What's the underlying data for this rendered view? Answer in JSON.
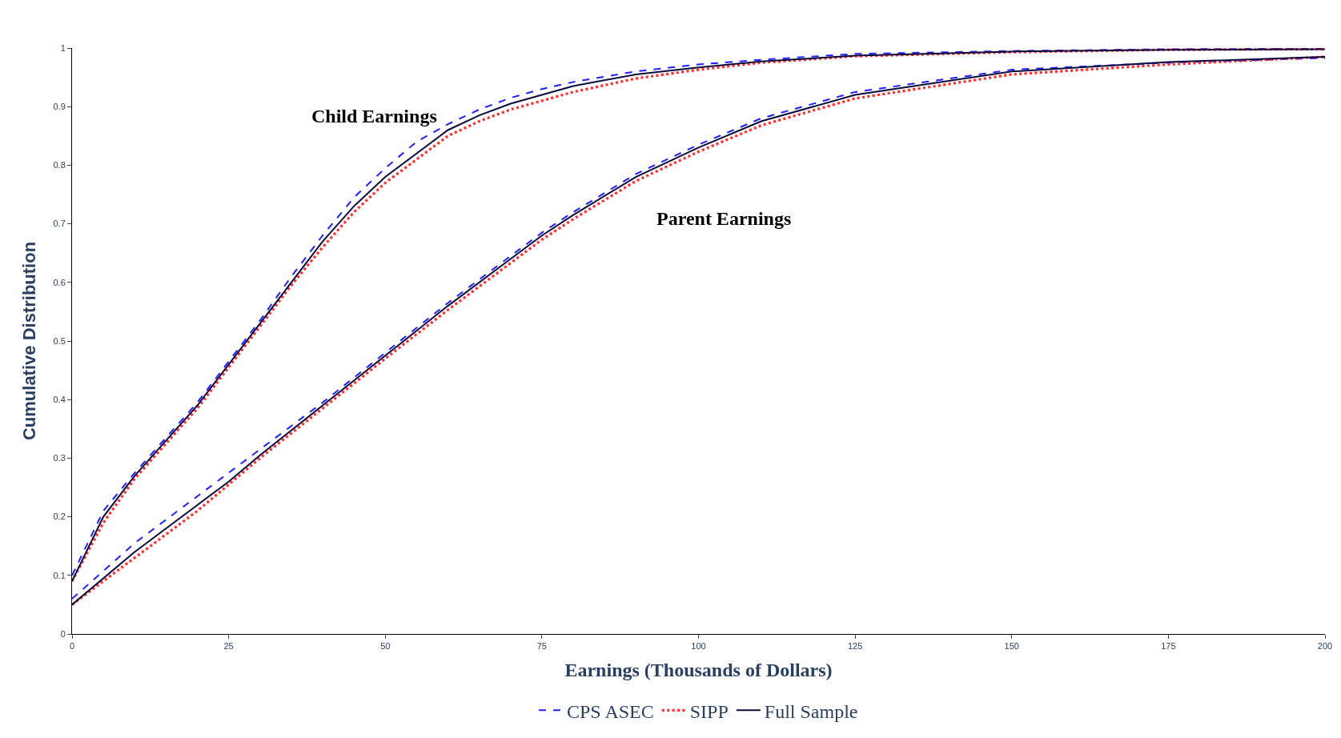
{
  "chart_data": {
    "type": "line",
    "xlabel": "Earnings (Thousands of Dollars)",
    "ylabel": "Cumulative Distribution",
    "xlim": [
      0,
      200
    ],
    "xticks": [
      0,
      25,
      50,
      75,
      100,
      125,
      150,
      175,
      200
    ],
    "ylim": [
      0,
      1
    ],
    "yticks": [
      0,
      0.1,
      0.2,
      0.3,
      0.4,
      0.5,
      0.6,
      0.7,
      0.8,
      0.9,
      1
    ],
    "legend": "bottom",
    "marker": "none",
    "annotations": [
      "Child Earnings",
      "Parent Earnings"
    ],
    "series": [
      {
        "name": "CPS ASEC",
        "color": "#1f1fff",
        "line_style": "dashed",
        "x": [
          0,
          5,
          10,
          15,
          20,
          25,
          30,
          35,
          40,
          45,
          50,
          55,
          60,
          65,
          70,
          75,
          80,
          90,
          100,
          110,
          125,
          150,
          175,
          200
        ],
        "values": [
          0.1,
          0.21,
          0.275,
          0.335,
          0.395,
          0.465,
          0.535,
          0.61,
          0.68,
          0.745,
          0.795,
          0.84,
          0.87,
          0.895,
          0.915,
          0.93,
          0.942,
          0.96,
          0.972,
          0.98,
          0.99,
          0.995,
          0.998,
          0.999
        ]
      },
      {
        "name": "SIPP",
        "color": "#ff3030",
        "line_style": "dotted",
        "x": [
          0,
          5,
          10,
          15,
          20,
          25,
          30,
          35,
          40,
          45,
          50,
          55,
          60,
          65,
          70,
          75,
          80,
          90,
          100,
          110,
          125,
          150,
          175,
          200
        ],
        "values": [
          0.09,
          0.19,
          0.265,
          0.325,
          0.385,
          0.455,
          0.525,
          0.595,
          0.66,
          0.72,
          0.77,
          0.81,
          0.85,
          0.875,
          0.895,
          0.91,
          0.925,
          0.948,
          0.963,
          0.975,
          0.986,
          0.993,
          0.997,
          0.998
        ]
      },
      {
        "name": "Full Sample",
        "color": "#0a0a3c",
        "line_style": "solid",
        "x": [
          0,
          5,
          10,
          15,
          20,
          25,
          30,
          35,
          40,
          45,
          50,
          55,
          60,
          65,
          70,
          75,
          80,
          90,
          100,
          110,
          125,
          150,
          175,
          200
        ],
        "values": [
          0.09,
          0.2,
          0.27,
          0.33,
          0.39,
          0.46,
          0.53,
          0.6,
          0.67,
          0.73,
          0.78,
          0.82,
          0.86,
          0.885,
          0.905,
          0.92,
          0.935,
          0.955,
          0.967,
          0.977,
          0.987,
          0.994,
          0.997,
          0.998
        ]
      },
      {
        "color": "#1f1fff",
        "line_style": "dashed",
        "x": [
          0,
          10,
          20,
          25,
          30,
          40,
          50,
          60,
          70,
          75,
          80,
          90,
          100,
          110,
          125,
          150,
          175,
          200
        ],
        "values": [
          0.06,
          0.155,
          0.235,
          0.275,
          0.315,
          0.395,
          0.48,
          0.565,
          0.645,
          0.685,
          0.72,
          0.785,
          0.835,
          0.88,
          0.925,
          0.963,
          0.975,
          0.983
        ]
      },
      {
        "color": "#ff3030",
        "line_style": "dotted",
        "x": [
          0,
          10,
          20,
          25,
          30,
          40,
          50,
          60,
          70,
          75,
          80,
          90,
          100,
          110,
          125,
          150,
          175,
          200
        ],
        "values": [
          0.05,
          0.13,
          0.21,
          0.255,
          0.3,
          0.385,
          0.47,
          0.553,
          0.633,
          0.673,
          0.708,
          0.773,
          0.823,
          0.868,
          0.914,
          0.955,
          0.972,
          0.985
        ]
      },
      {
        "color": "#0a0a3c",
        "line_style": "solid",
        "x": [
          0,
          10,
          20,
          25,
          30,
          40,
          50,
          60,
          70,
          75,
          80,
          90,
          100,
          110,
          125,
          150,
          175,
          200
        ],
        "values": [
          0.05,
          0.14,
          0.22,
          0.26,
          0.305,
          0.39,
          0.475,
          0.56,
          0.64,
          0.68,
          0.715,
          0.78,
          0.83,
          0.875,
          0.92,
          0.96,
          0.976,
          0.985
        ]
      }
    ]
  }
}
